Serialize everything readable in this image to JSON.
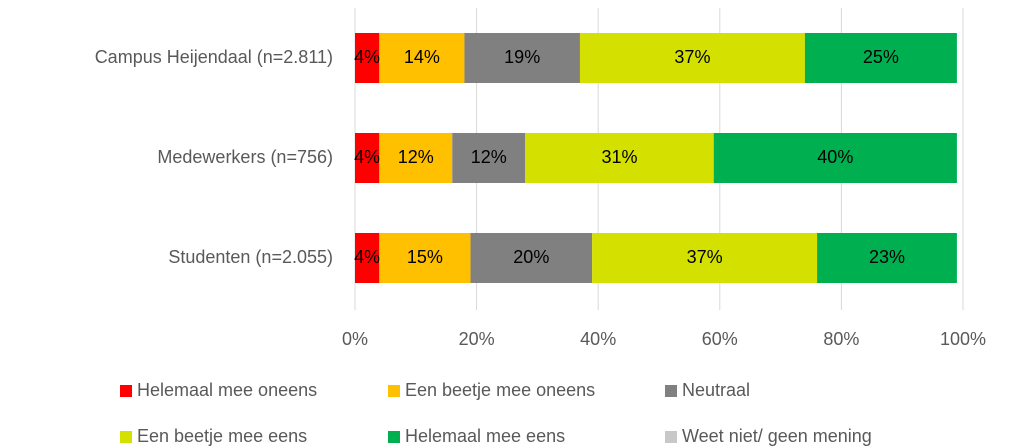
{
  "chart_data": {
    "type": "stacked_barh",
    "categories": [
      "Campus Heijendaal (n=2.811)",
      "Medewerkers (n=756)",
      "Studenten (n=2.055)"
    ],
    "series": [
      {
        "name": "Helemaal mee oneens",
        "color": "#ff0000",
        "values": [
          4,
          4,
          4
        ],
        "value_labels": [
          "4%",
          "4%",
          "4%"
        ]
      },
      {
        "name": "Een beetje mee oneens",
        "color": "#ffc000",
        "values": [
          14,
          12,
          15
        ],
        "value_labels": [
          "14%",
          "12%",
          "15%"
        ]
      },
      {
        "name": "Neutraal",
        "color": "#808080",
        "values": [
          19,
          12,
          20
        ],
        "value_labels": [
          "19%",
          "12%",
          "20%"
        ]
      },
      {
        "name": "Een beetje mee eens",
        "color": "#d4e000",
        "values": [
          37,
          31,
          37
        ],
        "value_labels": [
          "37%",
          "31%",
          "37%"
        ]
      },
      {
        "name": "Helemaal mee eens",
        "color": "#00b050",
        "values": [
          25,
          40,
          23
        ],
        "value_labels": [
          "25%",
          "40%",
          "23%"
        ]
      },
      {
        "name": "Weet niet/ geen mening",
        "color": "#c8c8c8",
        "values": [
          0,
          0,
          0
        ]
      }
    ],
    "xlim": [
      0,
      100
    ],
    "xticks": [
      {
        "value": 0,
        "label": "0%"
      },
      {
        "value": 20,
        "label": "20%"
      },
      {
        "value": 40,
        "label": "40%"
      },
      {
        "value": 60,
        "label": "60%"
      },
      {
        "value": 80,
        "label": "80%"
      },
      {
        "value": 100,
        "label": "100%"
      }
    ],
    "grid": true
  }
}
